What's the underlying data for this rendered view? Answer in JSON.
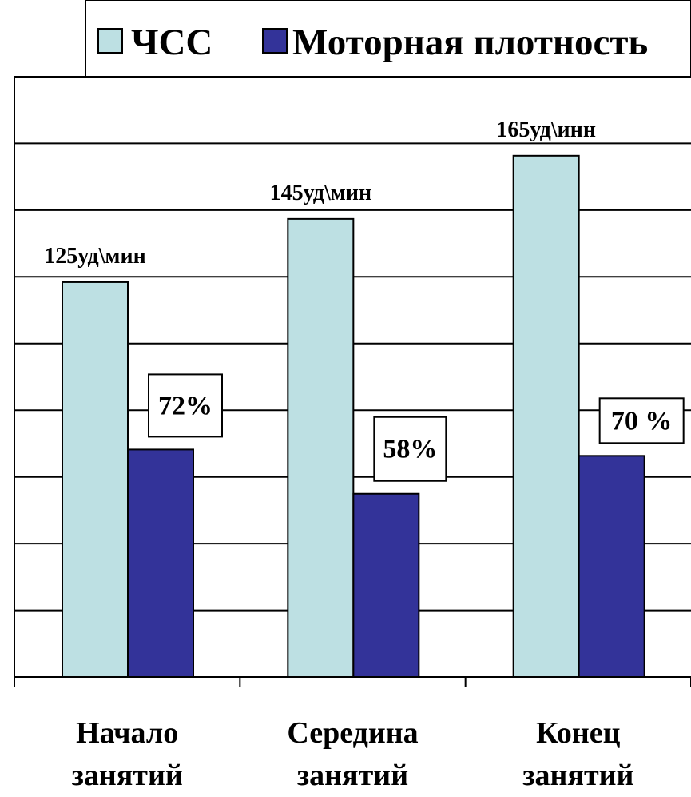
{
  "chart_data": {
    "type": "bar",
    "title": "",
    "xlabel": "",
    "ylabel": "",
    "categories": [
      "Начало занятий",
      "Середина занятий",
      "Конец занятий"
    ],
    "category_lines": [
      [
        "Начало",
        "занятий"
      ],
      [
        "Середина",
        "занятий"
      ],
      [
        "Конец",
        "занятий"
      ]
    ],
    "series": [
      {
        "name": "ЧСС",
        "values": [
          125,
          145,
          165
        ],
        "data_labels": [
          "125уд\\мин",
          "145уд\\мин",
          "165уд\\инн"
        ],
        "color": "#bde0e3"
      },
      {
        "name": "Моторная плотность",
        "values": [
          72,
          58,
          70
        ],
        "data_labels": [
          "72%",
          "58%",
          "70 %"
        ],
        "color": "#333399"
      }
    ],
    "ylim": [
      0,
      190
    ],
    "grid": true,
    "legend_position": "top",
    "show_y_tick_labels": false
  }
}
